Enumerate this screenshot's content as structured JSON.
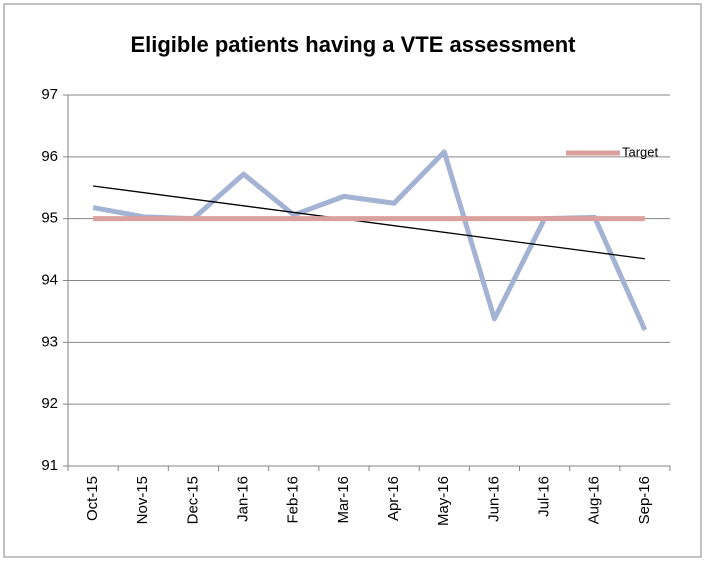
{
  "chart_data": {
    "type": "line",
    "title": "Eligible patients having a VTE assessment",
    "categories": [
      "Oct-15",
      "Nov-15",
      "Dec-15",
      "Jan-16",
      "Feb-16",
      "Mar-16",
      "Apr-16",
      "May-16",
      "Jun-16",
      "Jul-16",
      "Aug-16",
      "Sep-16"
    ],
    "series": [
      {
        "color": "#a4b3d3",
        "values": [
          95.18,
          95.03,
          95.0,
          95.72,
          95.06,
          95.36,
          95.25,
          96.08,
          93.38,
          95.0,
          95.02,
          93.2
        ],
        "trendline": true
      },
      {
        "name": "Target",
        "color": "#d9a09d",
        "values": [
          95,
          95,
          95,
          95,
          95,
          95,
          95,
          95,
          95,
          95,
          95,
          95
        ]
      }
    ],
    "ylim": [
      91,
      97
    ],
    "yticks": [
      91,
      92,
      93,
      94,
      95,
      96,
      97
    ],
    "grid": true,
    "legend": "right"
  }
}
